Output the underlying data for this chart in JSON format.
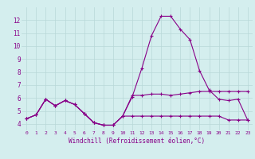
{
  "xlabel": "Windchill (Refroidissement éolien,°C)",
  "background_color": "#d4eeee",
  "grid_color": "#b8d8d8",
  "line_color": "#880088",
  "xlim": [
    -0.5,
    23.5
  ],
  "ylim": [
    3.5,
    13.0
  ],
  "xticks": [
    0,
    1,
    2,
    3,
    4,
    5,
    6,
    7,
    8,
    9,
    10,
    11,
    12,
    13,
    14,
    15,
    16,
    17,
    18,
    19,
    20,
    21,
    22,
    23
  ],
  "yticks": [
    4,
    5,
    6,
    7,
    8,
    9,
    10,
    11,
    12
  ],
  "series1_x": [
    0,
    1,
    2,
    3,
    4,
    5,
    6,
    7,
    8,
    9,
    10,
    11,
    12,
    13,
    14,
    15,
    16,
    17,
    18,
    19,
    20,
    21,
    22,
    23
  ],
  "series1_y": [
    4.4,
    4.7,
    5.9,
    5.4,
    5.8,
    5.5,
    4.8,
    4.1,
    3.9,
    3.9,
    4.6,
    6.2,
    6.2,
    6.3,
    6.3,
    6.2,
    6.3,
    6.4,
    6.5,
    6.5,
    6.5,
    6.5,
    6.5,
    6.5
  ],
  "series2_x": [
    0,
    1,
    2,
    3,
    4,
    5,
    6,
    7,
    8,
    9,
    10,
    11,
    12,
    13,
    14,
    15,
    16,
    17,
    18,
    19,
    20,
    21,
    22,
    23
  ],
  "series2_y": [
    4.4,
    4.7,
    5.9,
    5.4,
    5.8,
    5.5,
    4.8,
    4.1,
    3.9,
    3.9,
    4.6,
    6.1,
    8.3,
    10.8,
    12.3,
    12.3,
    11.3,
    10.5,
    8.1,
    6.6,
    5.9,
    5.8,
    5.9,
    4.3
  ],
  "series3_x": [
    0,
    1,
    2,
    3,
    4,
    5,
    6,
    7,
    8,
    9,
    10,
    11,
    12,
    13,
    14,
    15,
    16,
    17,
    18,
    19,
    20,
    21,
    22,
    23
  ],
  "series3_y": [
    4.4,
    4.7,
    5.9,
    5.4,
    5.8,
    5.5,
    4.8,
    4.1,
    3.9,
    3.9,
    4.6,
    4.6,
    4.6,
    4.6,
    4.6,
    4.6,
    4.6,
    4.6,
    4.6,
    4.6,
    4.6,
    4.3,
    4.3,
    4.3
  ],
  "tick_fontsize": 5.5,
  "xlabel_fontsize": 5.5,
  "marker_size": 3.0,
  "linewidth": 0.8
}
